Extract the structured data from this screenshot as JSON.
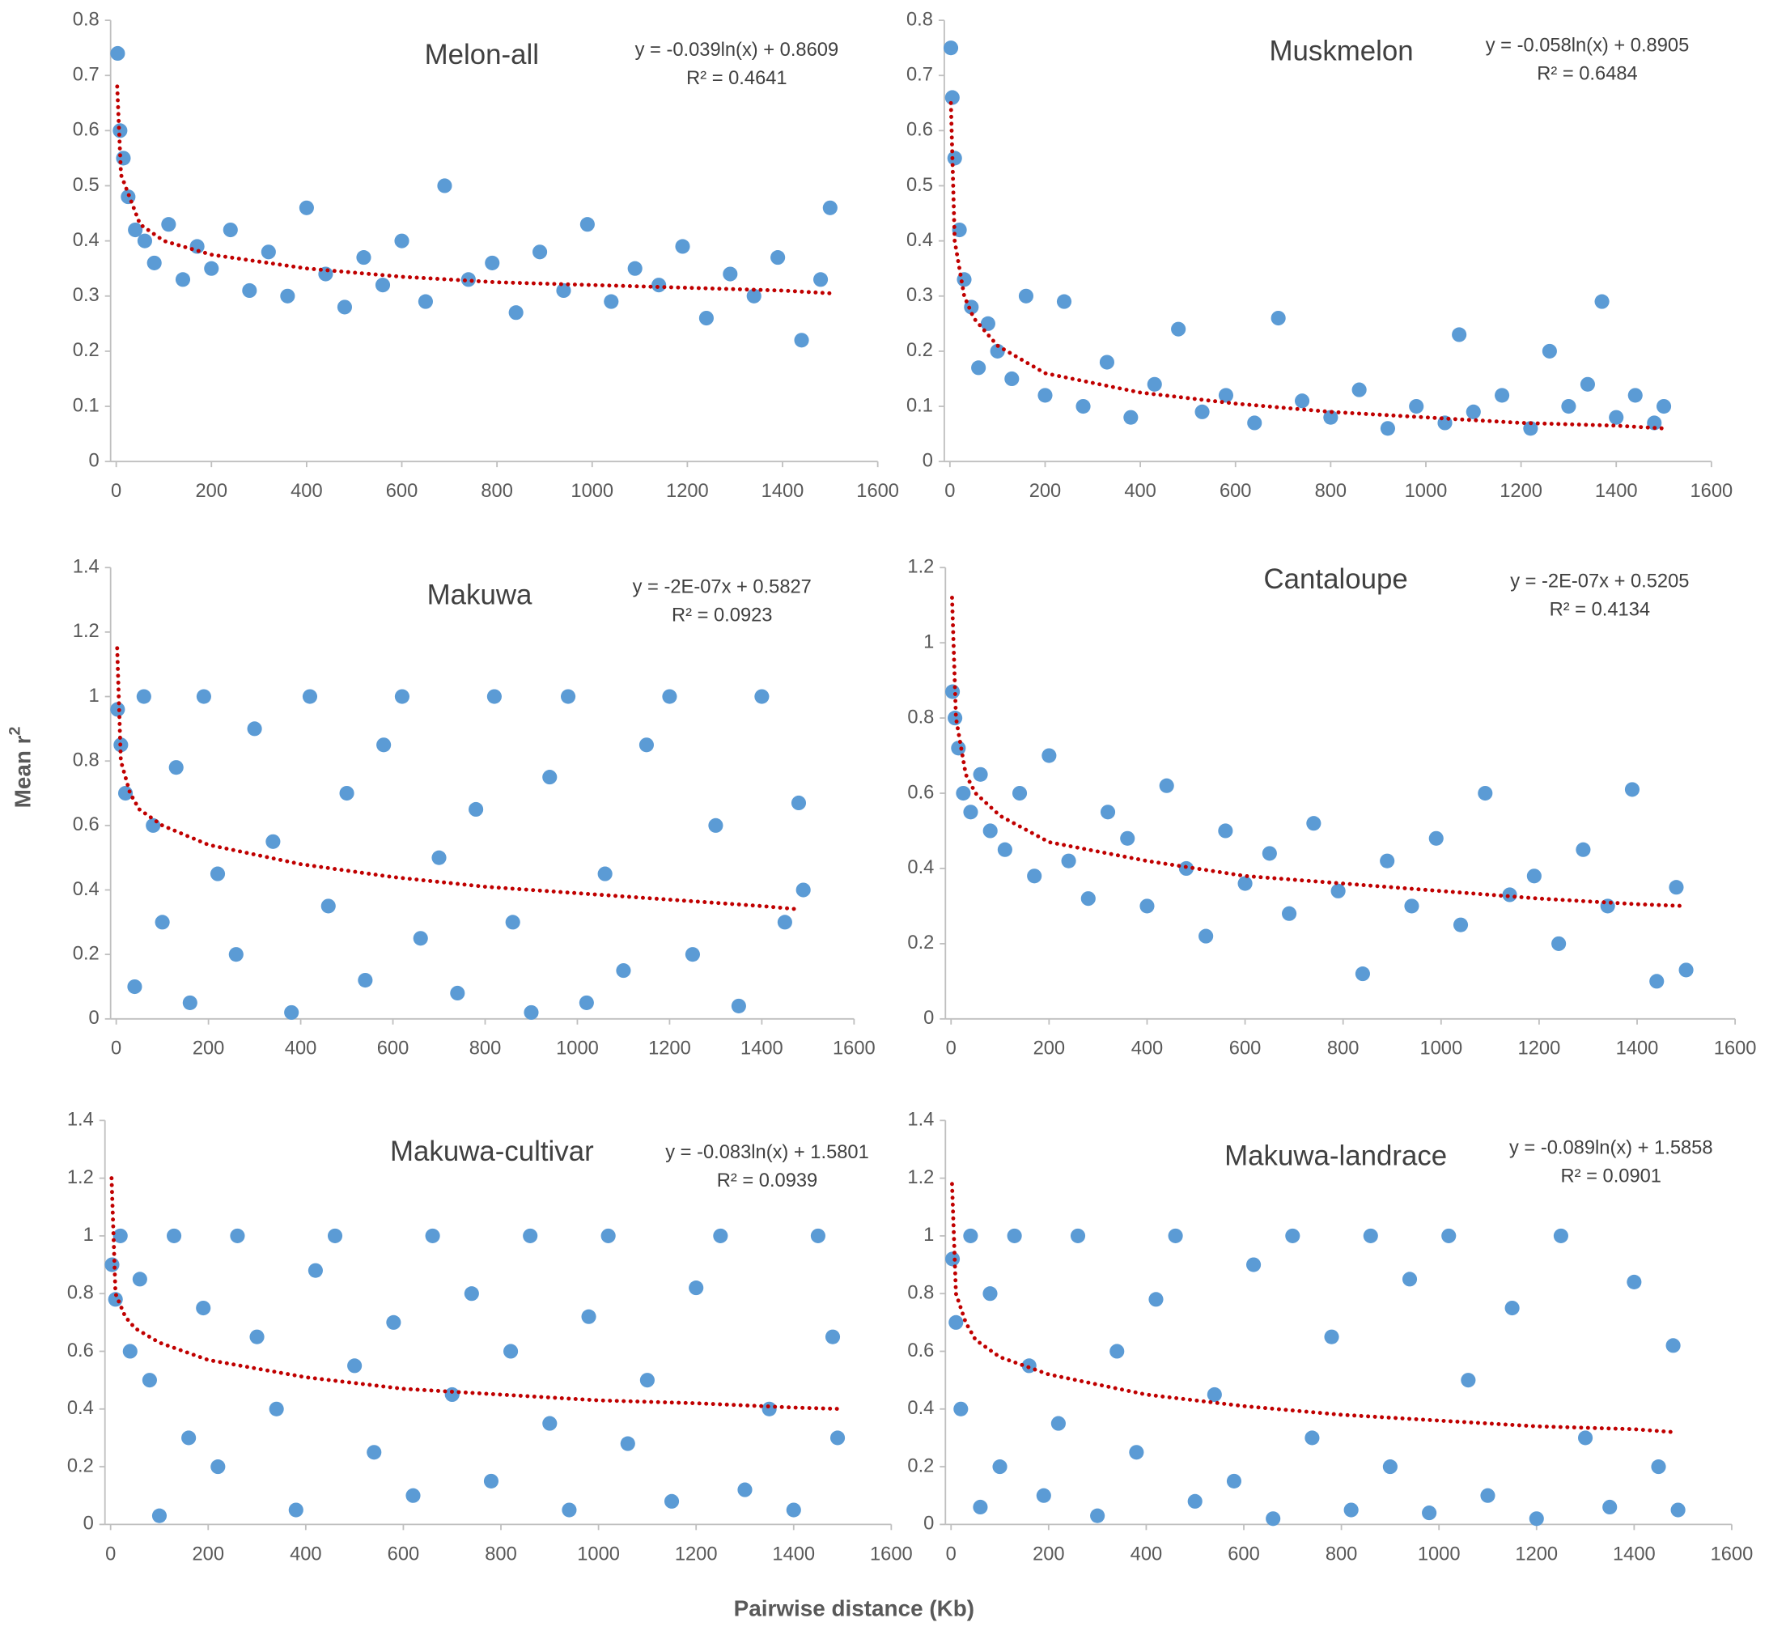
{
  "figure": {
    "ylabel": "Mean r",
    "ylabel_sup": "2",
    "xlabel": "Pairwise distance (Kb)"
  },
  "chart_data": [
    {
      "type": "scatter",
      "title": "Melon-all",
      "equation": "y = -0.039ln(x) + 0.8609",
      "r2": "R² = 0.4641",
      "color": "#5b9bd5",
      "trend_color": "#c00000",
      "xlim": [
        0,
        1600
      ],
      "xticks": [
        0,
        200,
        400,
        600,
        800,
        1000,
        1200,
        1400,
        1600
      ],
      "ylim": [
        0,
        0.8
      ],
      "yticks": [
        0,
        0.1,
        0.2,
        0.3,
        0.4,
        0.5,
        0.6,
        0.7,
        0.8
      ],
      "x": [
        3,
        8,
        15,
        25,
        40,
        60,
        80,
        110,
        140,
        170,
        200,
        240,
        280,
        320,
        360,
        400,
        440,
        480,
        520,
        560,
        600,
        650,
        690,
        740,
        790,
        840,
        890,
        940,
        990,
        1040,
        1090,
        1140,
        1190,
        1240,
        1290,
        1340,
        1390,
        1440,
        1480,
        1500
      ],
      "y": [
        0.74,
        0.6,
        0.55,
        0.48,
        0.42,
        0.4,
        0.36,
        0.43,
        0.33,
        0.39,
        0.35,
        0.42,
        0.31,
        0.38,
        0.3,
        0.46,
        0.34,
        0.28,
        0.37,
        0.32,
        0.4,
        0.29,
        0.5,
        0.33,
        0.36,
        0.27,
        0.38,
        0.31,
        0.43,
        0.29,
        0.35,
        0.32,
        0.39,
        0.26,
        0.34,
        0.3,
        0.37,
        0.22,
        0.33,
        0.46
      ],
      "trend": {
        "x": [
          2,
          10,
          50,
          100,
          200,
          400,
          600,
          800,
          1000,
          1200,
          1400,
          1500
        ],
        "y": [
          0.68,
          0.52,
          0.43,
          0.4,
          0.375,
          0.35,
          0.335,
          0.325,
          0.32,
          0.315,
          0.31,
          0.305
        ]
      }
    },
    {
      "type": "scatter",
      "title": "Muskmelon",
      "equation": "y = -0.058ln(x) + 0.8905",
      "r2": "R² = 0.6484",
      "color": "#5b9bd5",
      "trend_color": "#c00000",
      "xlim": [
        0,
        1600
      ],
      "xticks": [
        0,
        200,
        400,
        600,
        800,
        1000,
        1200,
        1400,
        1600
      ],
      "ylim": [
        0,
        0.8
      ],
      "yticks": [
        0,
        0.1,
        0.2,
        0.3,
        0.4,
        0.5,
        0.6,
        0.7,
        0.8
      ],
      "x": [
        2,
        5,
        10,
        20,
        30,
        45,
        60,
        80,
        100,
        130,
        160,
        200,
        240,
        280,
        330,
        380,
        430,
        480,
        530,
        580,
        640,
        690,
        740,
        800,
        860,
        920,
        980,
        1040,
        1070,
        1100,
        1160,
        1220,
        1260,
        1300,
        1340,
        1370,
        1400,
        1440,
        1480,
        1500
      ],
      "y": [
        0.75,
        0.66,
        0.55,
        0.42,
        0.33,
        0.28,
        0.17,
        0.25,
        0.2,
        0.15,
        0.3,
        0.12,
        0.29,
        0.1,
        0.18,
        0.08,
        0.14,
        0.24,
        0.09,
        0.12,
        0.07,
        0.26,
        0.11,
        0.08,
        0.13,
        0.06,
        0.1,
        0.07,
        0.23,
        0.09,
        0.12,
        0.06,
        0.2,
        0.1,
        0.14,
        0.29,
        0.08,
        0.12,
        0.07,
        0.1
      ],
      "trend": {
        "x": [
          2,
          10,
          30,
          50,
          100,
          200,
          400,
          600,
          800,
          1000,
          1200,
          1400,
          1500
        ],
        "y": [
          0.65,
          0.4,
          0.3,
          0.26,
          0.21,
          0.16,
          0.125,
          0.105,
          0.09,
          0.08,
          0.07,
          0.065,
          0.06
        ]
      }
    },
    {
      "type": "scatter",
      "title": "Makuwa",
      "equation": "y = -2E-07x + 0.5827",
      "r2": "R² = 0.0923",
      "color": "#5b9bd5",
      "trend_color": "#c00000",
      "xlim": [
        0,
        1600
      ],
      "xticks": [
        0,
        200,
        400,
        600,
        800,
        1000,
        1200,
        1400,
        1600
      ],
      "ylim": [
        0,
        1.4
      ],
      "yticks": [
        0,
        0.2,
        0.4,
        0.6,
        0.8,
        1,
        1.2,
        1.4
      ],
      "x": [
        3,
        10,
        20,
        40,
        60,
        80,
        100,
        130,
        160,
        190,
        220,
        260,
        300,
        340,
        380,
        420,
        460,
        500,
        540,
        580,
        620,
        660,
        700,
        740,
        780,
        820,
        860,
        900,
        940,
        980,
        1020,
        1060,
        1100,
        1150,
        1200,
        1250,
        1300,
        1350,
        1400,
        1450,
        1480,
        1490
      ],
      "y": [
        0.96,
        0.85,
        0.7,
        0.1,
        1,
        0.6,
        0.3,
        0.78,
        0.05,
        1,
        0.45,
        0.2,
        0.9,
        0.55,
        0.02,
        1,
        0.35,
        0.7,
        0.12,
        0.85,
        1,
        0.25,
        0.5,
        0.08,
        0.65,
        1,
        0.3,
        0.02,
        0.75,
        1,
        0.05,
        0.45,
        0.15,
        0.85,
        1,
        0.2,
        0.6,
        0.04,
        1,
        0.3,
        0.67,
        0.4
      ],
      "trend": {
        "x": [
          2,
          10,
          30,
          50,
          100,
          200,
          400,
          600,
          800,
          1000,
          1200,
          1400,
          1480
        ],
        "y": [
          1.15,
          0.8,
          0.7,
          0.65,
          0.6,
          0.54,
          0.48,
          0.44,
          0.41,
          0.39,
          0.37,
          0.35,
          0.34
        ]
      }
    },
    {
      "type": "scatter",
      "title": "Cantaloupe",
      "equation": "y = -2E-07x + 0.5205",
      "r2": "R² = 0.4134",
      "color": "#5b9bd5",
      "trend_color": "#c00000",
      "xlim": [
        0,
        1600
      ],
      "xticks": [
        0,
        200,
        400,
        600,
        800,
        1000,
        1200,
        1400,
        1600
      ],
      "ylim": [
        0,
        1.2
      ],
      "yticks": [
        0,
        0.2,
        0.4,
        0.6,
        0.8,
        1,
        1.2
      ],
      "x": [
        3,
        8,
        15,
        25,
        40,
        60,
        80,
        110,
        140,
        170,
        200,
        240,
        280,
        320,
        360,
        400,
        440,
        480,
        520,
        560,
        600,
        650,
        690,
        740,
        790,
        840,
        890,
        940,
        990,
        1040,
        1090,
        1140,
        1190,
        1240,
        1290,
        1340,
        1390,
        1440,
        1480,
        1500
      ],
      "y": [
        0.87,
        0.8,
        0.72,
        0.6,
        0.55,
        0.65,
        0.5,
        0.45,
        0.6,
        0.38,
        0.7,
        0.42,
        0.32,
        0.55,
        0.48,
        0.3,
        0.62,
        0.4,
        0.22,
        0.5,
        0.36,
        0.44,
        0.28,
        0.52,
        0.34,
        0.12,
        0.42,
        0.3,
        0.48,
        0.25,
        0.6,
        0.33,
        0.38,
        0.2,
        0.45,
        0.3,
        0.61,
        0.1,
        0.35,
        0.13
      ],
      "trend": {
        "x": [
          2,
          10,
          30,
          50,
          100,
          200,
          400,
          600,
          800,
          1000,
          1200,
          1400,
          1500
        ],
        "y": [
          1.12,
          0.8,
          0.65,
          0.6,
          0.54,
          0.47,
          0.42,
          0.38,
          0.36,
          0.34,
          0.32,
          0.305,
          0.3
        ]
      }
    },
    {
      "type": "scatter",
      "title": "Makuwa-cultivar",
      "equation": "y = -0.083ln(x) + 1.5801",
      "r2": "R² = 0.0939",
      "color": "#5b9bd5",
      "trend_color": "#c00000",
      "xlim": [
        0,
        1600
      ],
      "xticks": [
        0,
        200,
        400,
        600,
        800,
        1000,
        1200,
        1400,
        1600
      ],
      "ylim": [
        0,
        1.4
      ],
      "yticks": [
        0,
        0.2,
        0.4,
        0.6,
        0.8,
        1,
        1.2,
        1.4
      ],
      "x": [
        3,
        10,
        20,
        40,
        60,
        80,
        100,
        130,
        160,
        190,
        220,
        260,
        300,
        340,
        380,
        420,
        460,
        500,
        540,
        580,
        620,
        660,
        700,
        740,
        780,
        820,
        860,
        900,
        940,
        980,
        1020,
        1060,
        1100,
        1150,
        1200,
        1250,
        1300,
        1350,
        1400,
        1450,
        1480,
        1490
      ],
      "y": [
        0.9,
        0.78,
        1,
        0.6,
        0.85,
        0.5,
        0.03,
        1,
        0.3,
        0.75,
        0.2,
        1,
        0.65,
        0.4,
        0.05,
        0.88,
        1,
        0.55,
        0.25,
        0.7,
        0.1,
        1,
        0.45,
        0.8,
        0.15,
        0.6,
        1,
        0.35,
        0.05,
        0.72,
        1,
        0.28,
        0.5,
        0.08,
        0.82,
        1,
        0.12,
        0.4,
        0.05,
        1,
        0.65,
        0.3
      ],
      "trend": {
        "x": [
          2,
          10,
          30,
          50,
          100,
          200,
          400,
          600,
          800,
          1000,
          1200,
          1400,
          1500
        ],
        "y": [
          1.2,
          0.8,
          0.72,
          0.68,
          0.63,
          0.57,
          0.51,
          0.47,
          0.45,
          0.43,
          0.42,
          0.405,
          0.4
        ]
      }
    },
    {
      "type": "scatter",
      "title": "Makuwa-landrace",
      "equation": "y = -0.089ln(x) + 1.5858",
      "r2": "R² = 0.0901",
      "color": "#5b9bd5",
      "trend_color": "#c00000",
      "xlim": [
        0,
        1600
      ],
      "xticks": [
        0,
        200,
        400,
        600,
        800,
        1000,
        1200,
        1400,
        1600
      ],
      "ylim": [
        0,
        1.4
      ],
      "yticks": [
        0,
        0.2,
        0.4,
        0.6,
        0.8,
        1,
        1.2,
        1.4
      ],
      "x": [
        3,
        10,
        20,
        40,
        60,
        80,
        100,
        130,
        160,
        190,
        220,
        260,
        300,
        340,
        380,
        420,
        460,
        500,
        540,
        580,
        620,
        660,
        700,
        740,
        780,
        820,
        860,
        900,
        940,
        980,
        1020,
        1060,
        1100,
        1150,
        1200,
        1250,
        1300,
        1350,
        1400,
        1450,
        1480,
        1490
      ],
      "y": [
        0.92,
        0.7,
        0.4,
        1,
        0.06,
        0.8,
        0.2,
        1,
        0.55,
        0.1,
        0.35,
        1,
        0.03,
        0.6,
        0.25,
        0.78,
        1,
        0.08,
        0.45,
        0.15,
        0.9,
        0.02,
        1,
        0.3,
        0.65,
        0.05,
        1,
        0.2,
        0.85,
        0.04,
        1,
        0.5,
        0.1,
        0.75,
        0.02,
        1,
        0.3,
        0.06,
        0.84,
        0.2,
        0.62,
        0.05
      ],
      "trend": {
        "x": [
          2,
          10,
          30,
          50,
          100,
          200,
          400,
          600,
          800,
          1000,
          1200,
          1400,
          1480
        ],
        "y": [
          1.18,
          0.8,
          0.7,
          0.64,
          0.58,
          0.52,
          0.45,
          0.41,
          0.38,
          0.36,
          0.34,
          0.33,
          0.32
        ]
      }
    }
  ]
}
